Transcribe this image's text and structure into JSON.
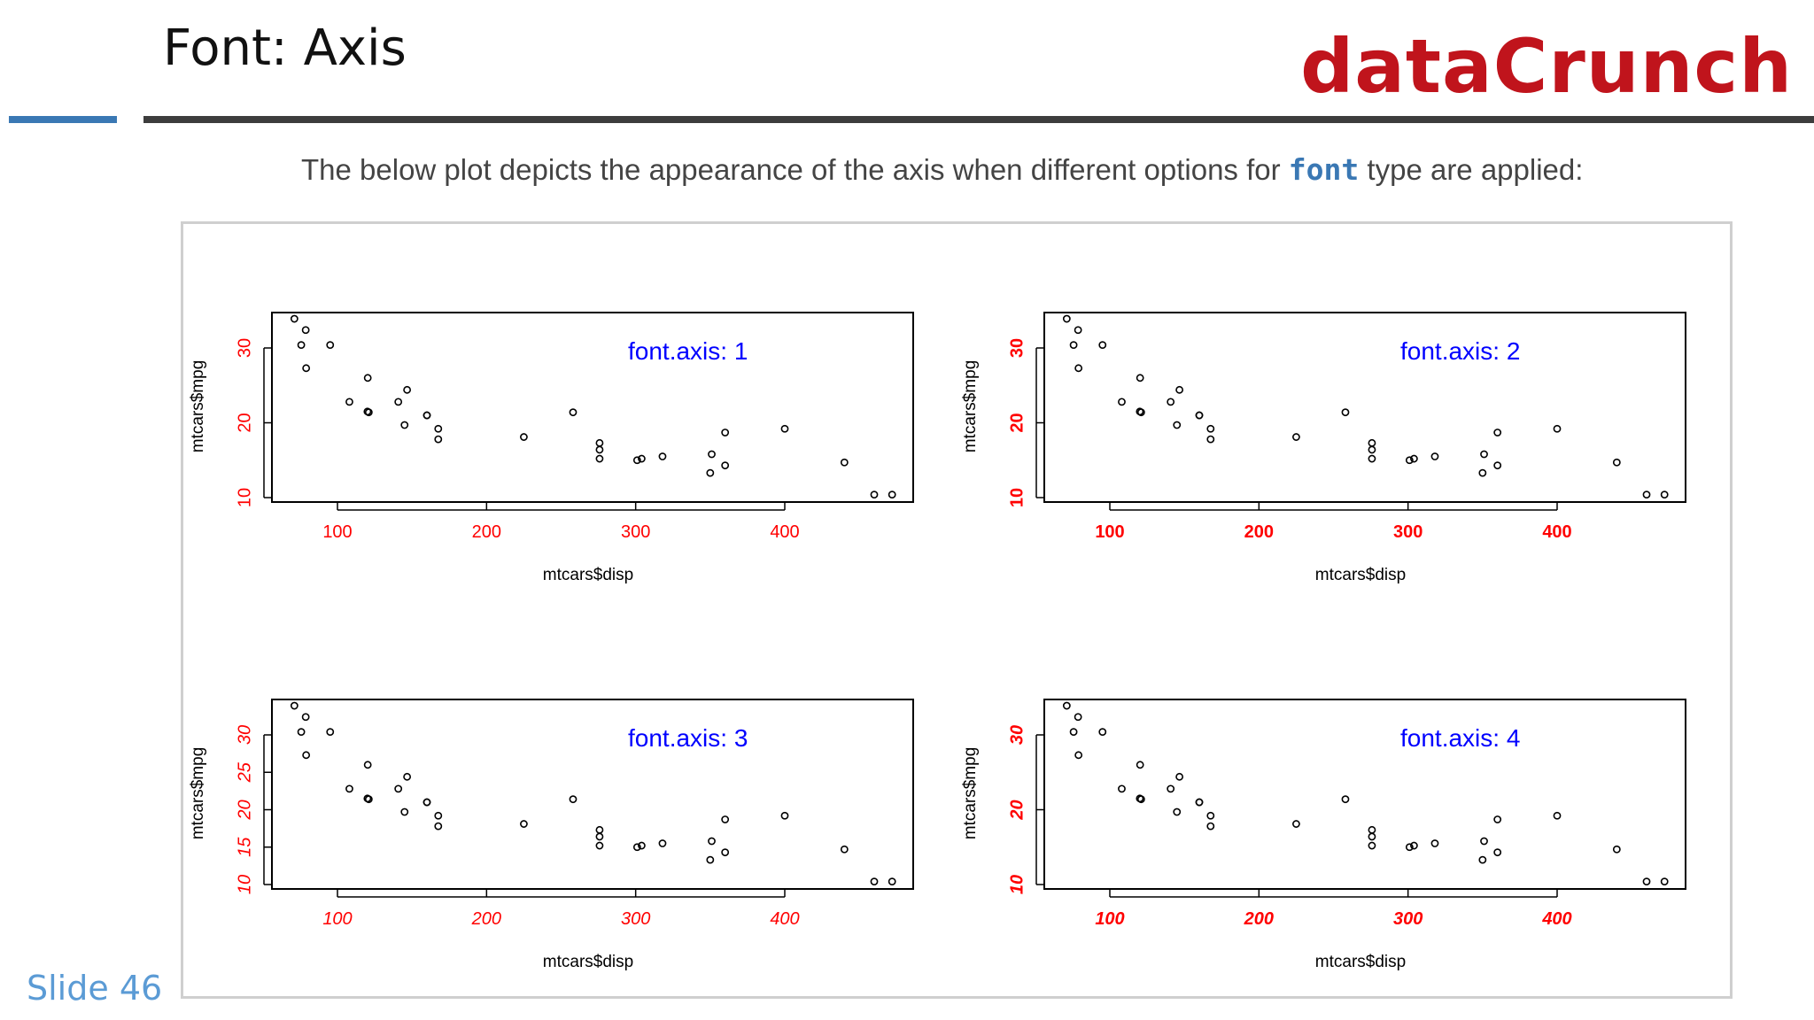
{
  "header": {
    "title": "Font: Axis",
    "brand": "dataCrunch"
  },
  "intro": {
    "before": "The below plot depicts the appearance of the axis when different options for ",
    "code": "font",
    "after": " type are applied:"
  },
  "footer": {
    "slide_number": "Slide 46"
  },
  "colors": {
    "axis_tick": "#ff0000",
    "annotation": "#0000ff",
    "brand": "#c0141c",
    "accent": "#3a78b4"
  },
  "chart_data": [
    {
      "type": "scatter",
      "annotation": "font.axis: 1",
      "xlabel": "mtcars$disp",
      "ylabel": "mtcars$mpg",
      "xticks": [
        "100",
        "200",
        "300",
        "400"
      ],
      "yticks": [
        "10",
        "20",
        "30"
      ],
      "xlim": [
        60,
        480
      ],
      "ylim": [
        10,
        34
      ],
      "points": [
        [
          160,
          21
        ],
        [
          160,
          21
        ],
        [
          108,
          22.8
        ],
        [
          258,
          21.4
        ],
        [
          360,
          18.7
        ],
        [
          225,
          18.1
        ],
        [
          360,
          14.3
        ],
        [
          146.7,
          24.4
        ],
        [
          140.8,
          22.8
        ],
        [
          167.6,
          19.2
        ],
        [
          167.6,
          17.8
        ],
        [
          275.8,
          16.4
        ],
        [
          275.8,
          17.3
        ],
        [
          275.8,
          15.2
        ],
        [
          472,
          10.4
        ],
        [
          460,
          10.4
        ],
        [
          440,
          14.7
        ],
        [
          78.7,
          32.4
        ],
        [
          75.7,
          30.4
        ],
        [
          71.1,
          33.9
        ],
        [
          120.1,
          21.5
        ],
        [
          318,
          15.5
        ],
        [
          304,
          15.2
        ],
        [
          350,
          13.3
        ],
        [
          400,
          19.2
        ],
        [
          79,
          27.3
        ],
        [
          120.3,
          26
        ],
        [
          95.1,
          30.4
        ],
        [
          351,
          15.8
        ],
        [
          145,
          19.7
        ],
        [
          301,
          15
        ],
        [
          121,
          21.4
        ]
      ]
    },
    {
      "type": "scatter",
      "annotation": "font.axis: 2",
      "xlabel": "mtcars$disp",
      "ylabel": "mtcars$mpg",
      "xticks": [
        "100",
        "200",
        "300",
        "400"
      ],
      "yticks": [
        "10",
        "20",
        "30"
      ],
      "xlim": [
        60,
        480
      ],
      "ylim": [
        10,
        34
      ],
      "points": [
        [
          160,
          21
        ],
        [
          160,
          21
        ],
        [
          108,
          22.8
        ],
        [
          258,
          21.4
        ],
        [
          360,
          18.7
        ],
        [
          225,
          18.1
        ],
        [
          360,
          14.3
        ],
        [
          146.7,
          24.4
        ],
        [
          140.8,
          22.8
        ],
        [
          167.6,
          19.2
        ],
        [
          167.6,
          17.8
        ],
        [
          275.8,
          16.4
        ],
        [
          275.8,
          17.3
        ],
        [
          275.8,
          15.2
        ],
        [
          472,
          10.4
        ],
        [
          460,
          10.4
        ],
        [
          440,
          14.7
        ],
        [
          78.7,
          32.4
        ],
        [
          75.7,
          30.4
        ],
        [
          71.1,
          33.9
        ],
        [
          120.1,
          21.5
        ],
        [
          318,
          15.5
        ],
        [
          304,
          15.2
        ],
        [
          350,
          13.3
        ],
        [
          400,
          19.2
        ],
        [
          79,
          27.3
        ],
        [
          120.3,
          26
        ],
        [
          95.1,
          30.4
        ],
        [
          351,
          15.8
        ],
        [
          145,
          19.7
        ],
        [
          301,
          15
        ],
        [
          121,
          21.4
        ]
      ]
    },
    {
      "type": "scatter",
      "annotation": "font.axis: 3",
      "xlabel": "mtcars$disp",
      "ylabel": "mtcars$mpg",
      "xticks": [
        "100",
        "200",
        "300",
        "400"
      ],
      "yticks": [
        "10",
        "15",
        "20",
        "25",
        "30"
      ],
      "xlim": [
        60,
        480
      ],
      "ylim": [
        10,
        34
      ],
      "points": [
        [
          160,
          21
        ],
        [
          160,
          21
        ],
        [
          108,
          22.8
        ],
        [
          258,
          21.4
        ],
        [
          360,
          18.7
        ],
        [
          225,
          18.1
        ],
        [
          360,
          14.3
        ],
        [
          146.7,
          24.4
        ],
        [
          140.8,
          22.8
        ],
        [
          167.6,
          19.2
        ],
        [
          167.6,
          17.8
        ],
        [
          275.8,
          16.4
        ],
        [
          275.8,
          17.3
        ],
        [
          275.8,
          15.2
        ],
        [
          472,
          10.4
        ],
        [
          460,
          10.4
        ],
        [
          440,
          14.7
        ],
        [
          78.7,
          32.4
        ],
        [
          75.7,
          30.4
        ],
        [
          71.1,
          33.9
        ],
        [
          120.1,
          21.5
        ],
        [
          318,
          15.5
        ],
        [
          304,
          15.2
        ],
        [
          350,
          13.3
        ],
        [
          400,
          19.2
        ],
        [
          79,
          27.3
        ],
        [
          120.3,
          26
        ],
        [
          95.1,
          30.4
        ],
        [
          351,
          15.8
        ],
        [
          145,
          19.7
        ],
        [
          301,
          15
        ],
        [
          121,
          21.4
        ]
      ]
    },
    {
      "type": "scatter",
      "annotation": "font.axis: 4",
      "xlabel": "mtcars$disp",
      "ylabel": "mtcars$mpg",
      "xticks": [
        "100",
        "200",
        "300",
        "400"
      ],
      "yticks": [
        "10",
        "20",
        "30"
      ],
      "xlim": [
        60,
        480
      ],
      "ylim": [
        10,
        34
      ],
      "points": [
        [
          160,
          21
        ],
        [
          160,
          21
        ],
        [
          108,
          22.8
        ],
        [
          258,
          21.4
        ],
        [
          360,
          18.7
        ],
        [
          225,
          18.1
        ],
        [
          360,
          14.3
        ],
        [
          146.7,
          24.4
        ],
        [
          140.8,
          22.8
        ],
        [
          167.6,
          19.2
        ],
        [
          167.6,
          17.8
        ],
        [
          275.8,
          16.4
        ],
        [
          275.8,
          17.3
        ],
        [
          275.8,
          15.2
        ],
        [
          472,
          10.4
        ],
        [
          460,
          10.4
        ],
        [
          440,
          14.7
        ],
        [
          78.7,
          32.4
        ],
        [
          75.7,
          30.4
        ],
        [
          71.1,
          33.9
        ],
        [
          120.1,
          21.5
        ],
        [
          318,
          15.5
        ],
        [
          304,
          15.2
        ],
        [
          350,
          13.3
        ],
        [
          400,
          19.2
        ],
        [
          79,
          27.3
        ],
        [
          120.3,
          26
        ],
        [
          95.1,
          30.4
        ],
        [
          351,
          15.8
        ],
        [
          145,
          19.7
        ],
        [
          301,
          15
        ],
        [
          121,
          21.4
        ]
      ]
    }
  ]
}
